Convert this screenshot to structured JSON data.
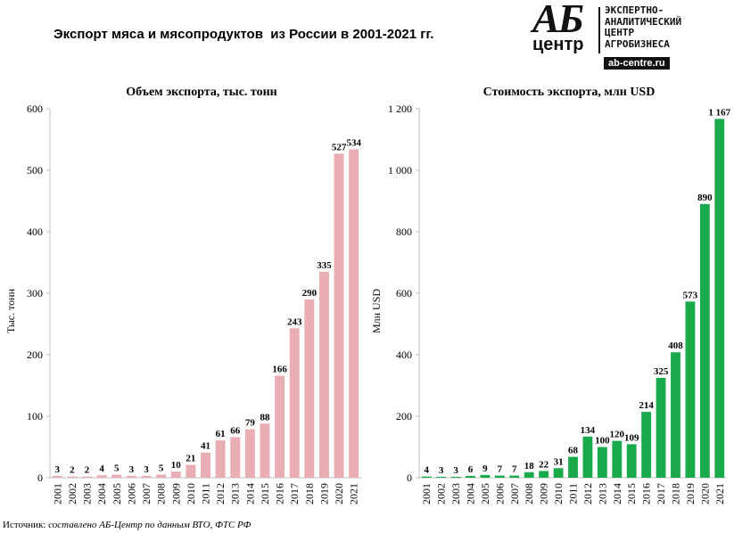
{
  "title": "Экспорт мяса и мясопродуктов  из России в 2001-2021 гг.",
  "logo": {
    "mark_top": "АБ",
    "mark_bottom": "центр",
    "line1": "ЭКСПЕРТНО-",
    "line2": "АНАЛИТИЧЕСКИЙ",
    "line3": "ЦЕНТР",
    "line4": "АГРОБИЗНЕСА",
    "url": "ab-centre.ru"
  },
  "source": {
    "label": "Источник:",
    "text": "составлено АБ-Центр по данным ВТО, ФТС РФ"
  },
  "chart_data": [
    {
      "type": "bar",
      "title": "Объем экспорта, тыс. тонн",
      "ylabel": "Тыс. тонн",
      "xlabel": "",
      "ylim": [
        0,
        600
      ],
      "yticks": [
        0,
        100,
        200,
        300,
        400,
        500,
        600
      ],
      "ytick_labels": [
        "0",
        "100",
        "200",
        "300",
        "400",
        "500",
        "600"
      ],
      "color": "#e8aeb3",
      "categories": [
        "2001",
        "2002",
        "2003",
        "2004",
        "2005",
        "2006",
        "2007",
        "2008",
        "2009",
        "2010",
        "2011",
        "2012",
        "2013",
        "2014",
        "2015",
        "2016",
        "2017",
        "2018",
        "2019",
        "2020",
        "2021"
      ],
      "values": [
        3,
        2,
        2,
        4,
        5,
        3,
        3,
        5,
        10,
        21,
        41,
        61,
        66,
        79,
        88,
        166,
        243,
        290,
        335,
        527,
        534
      ],
      "labels": [
        "3",
        "2",
        "2",
        "4",
        "5",
        "3",
        "3",
        "5",
        "10",
        "21",
        "41",
        "61",
        "66",
        "79",
        "88",
        "166",
        "243",
        "290",
        "335",
        "527",
        "534"
      ]
    },
    {
      "type": "bar",
      "title": "Стоимость экспорта, млн USD",
      "ylabel": "Млн USD",
      "xlabel": "",
      "ylim": [
        0,
        1200
      ],
      "yticks": [
        0,
        200,
        400,
        600,
        800,
        1000,
        1200
      ],
      "ytick_labels": [
        "0",
        "200",
        "400",
        "600",
        "800",
        "1 000",
        "1 200"
      ],
      "color": "#1aaa4c",
      "categories": [
        "2001",
        "2002",
        "2003",
        "2004",
        "2005",
        "2006",
        "2007",
        "2008",
        "2009",
        "2010",
        "2011",
        "2012",
        "2013",
        "2014",
        "2015",
        "2016",
        "2017",
        "2018",
        "2019",
        "2020",
        "2021"
      ],
      "values": [
        4,
        3,
        3,
        6,
        9,
        7,
        7,
        18,
        22,
        31,
        68,
        134,
        100,
        120,
        109,
        214,
        325,
        408,
        573,
        890,
        1167
      ],
      "labels": [
        "4",
        "3",
        "3",
        "6",
        "9",
        "7",
        "7",
        "18",
        "22",
        "31",
        "68",
        "134",
        "100",
        "120",
        "109",
        "214",
        "325",
        "408",
        "573",
        "890",
        "1 167"
      ]
    }
  ]
}
